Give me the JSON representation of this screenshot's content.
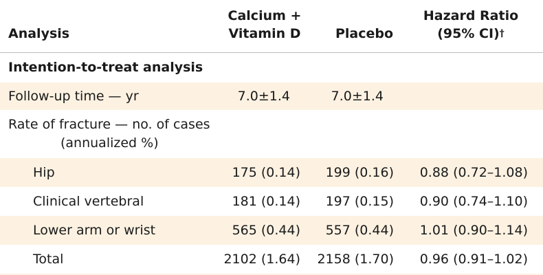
{
  "columns": {
    "analysis": "Analysis",
    "calcium_line1": "Calcium +",
    "calcium_line2": "Vitamin D",
    "placebo": "Placebo",
    "hr_line1": "Hazard Ratio",
    "hr_line2": "(95% CI)",
    "hr_dagger": "†"
  },
  "section": "Intention-to-treat analysis",
  "followup": {
    "label": "Follow-up time — yr",
    "calcium": "7.0±1.4",
    "placebo": "7.0±1.4",
    "hr": ""
  },
  "fracture_header": {
    "line1": "Rate of fracture — no. of cases",
    "line2": "(annualized %)"
  },
  "rows": [
    {
      "label": "Hip",
      "calcium": "175 (0.14)",
      "placebo": "199 (0.16)",
      "hr": "0.88 (0.72–1.08)"
    },
    {
      "label": "Clinical vertebral",
      "calcium": "181 (0.14)",
      "placebo": "197 (0.15)",
      "hr": "0.90 (0.74–1.10)"
    },
    {
      "label": "Lower arm or wrist",
      "calcium": "565 (0.44)",
      "placebo": "557 (0.44)",
      "hr": "1.01 (0.90–1.14)"
    },
    {
      "label": "Total",
      "calcium": "2102 (1.64)",
      "placebo": "2158 (1.70)",
      "hr": "0.96 (0.91–1.02)"
    }
  ],
  "colors": {
    "shade": "#fdf2e2",
    "rule": "#bdbdbd",
    "text": "#1a1a1a"
  }
}
